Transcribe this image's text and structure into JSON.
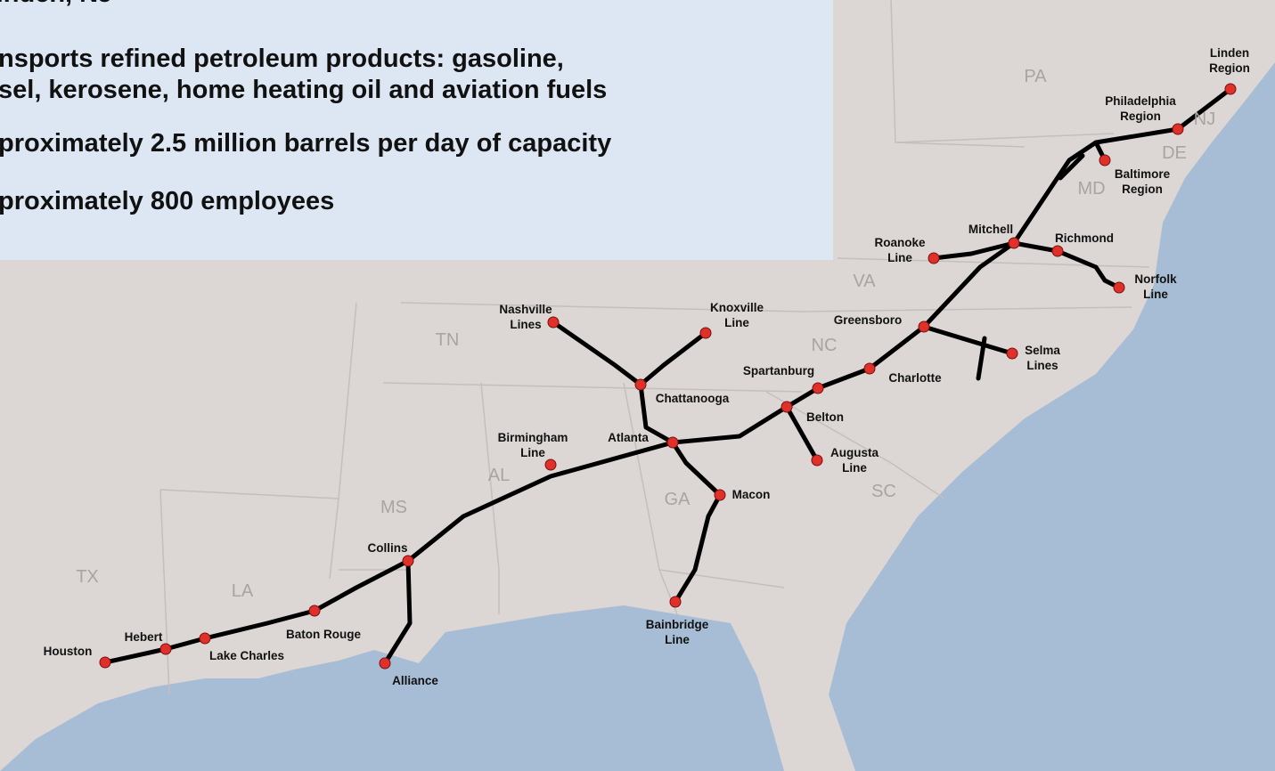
{
  "info_box": {
    "lines": [
      "Linden, NJ",
      "nsports refined petroleum products: gasoline,",
      "sel, kerosene, home heating oil and aviation fuels",
      "proximately 2.5 million barrels per day of capacity",
      "proximately 800 employees"
    ]
  },
  "states": [
    "PA",
    "NJ",
    "DE",
    "MD",
    "VA",
    "NC",
    "TN",
    "SC",
    "GA",
    "AL",
    "MS",
    "LA",
    "TX"
  ],
  "places": [
    {
      "label": [
        "Linden",
        "Region"
      ]
    },
    {
      "label": [
        "Philadelphia",
        "Region"
      ]
    },
    {
      "label": [
        "Baltimore",
        "Region"
      ]
    },
    {
      "label": [
        "Mitchell"
      ]
    },
    {
      "label": [
        "Richmond"
      ]
    },
    {
      "label": [
        "Roanoke",
        "Line"
      ]
    },
    {
      "label": [
        "Norfolk",
        "Line"
      ]
    },
    {
      "label": [
        "Greensboro"
      ]
    },
    {
      "label": [
        "Selma",
        "Lines"
      ]
    },
    {
      "label": [
        "Charlotte"
      ]
    },
    {
      "label": [
        "Spartanburg"
      ]
    },
    {
      "label": [
        "Belton"
      ]
    },
    {
      "label": [
        "Augusta",
        "Line"
      ]
    },
    {
      "label": [
        "Knoxville",
        "Line"
      ]
    },
    {
      "label": [
        "Nashville",
        "Lines"
      ]
    },
    {
      "label": [
        "Chattanooga"
      ]
    },
    {
      "label": [
        "Atlanta"
      ]
    },
    {
      "label": [
        "Birmingham",
        "Line"
      ]
    },
    {
      "label": [
        "Macon"
      ]
    },
    {
      "label": [
        "Bainbridge",
        "Line"
      ]
    },
    {
      "label": [
        "Collins"
      ]
    },
    {
      "label": [
        "Baton Rouge"
      ]
    },
    {
      "label": [
        "Lake Charles"
      ]
    },
    {
      "label": [
        "Hebert"
      ]
    },
    {
      "label": [
        "Houston"
      ]
    },
    {
      "label": [
        "Alliance"
      ]
    }
  ]
}
